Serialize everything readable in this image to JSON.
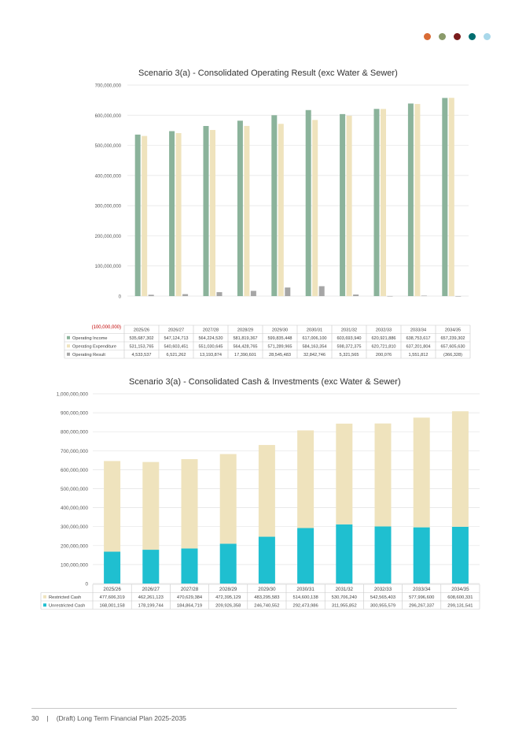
{
  "header": {
    "dot_colors": [
      "#d96b35",
      "#8a9a6a",
      "#7a1c1c",
      "#006d6f",
      "#a9d8ea"
    ]
  },
  "footer": {
    "page_number": "30",
    "separator": "|",
    "document_title": "(Draft) Long Term Financial Plan 2025-2035"
  },
  "chart1": {
    "title": "Scenario 3(a) - Consolidated Operating Result (exc Water & Sewer)",
    "negative_label": "(100,000,000)",
    "chart_data": {
      "type": "bar",
      "title": "Scenario 3(a) - Consolidated Operating Result (exc Water & Sewer)",
      "categories": [
        "2025/26",
        "2026/27",
        "2027/28",
        "2028/29",
        "2029/30",
        "2030/31",
        "2031/32",
        "2032/33",
        "2033/34",
        "2034/35"
      ],
      "ylim": [
        -100000000,
        700000000
      ],
      "yticks": [
        "700,000,000",
        "600,000,000",
        "500,000,000",
        "400,000,000",
        "300,000,000",
        "200,000,000",
        "100,000,000",
        "0"
      ],
      "grid": true,
      "legend": "data-table",
      "series": [
        {
          "name": "Operating Income",
          "color": "#8bb39b",
          "values": [
            535687302,
            547124713,
            564224520,
            581819367,
            599835448,
            617006100,
            603693940,
            620921886,
            638753617,
            657239302
          ],
          "labels": [
            "535,687,302",
            "547,124,713",
            "564,224,520",
            "581,819,367",
            "599,835,448",
            "617,006,100",
            "603,693,940",
            "620,921,886",
            "638,753,617",
            "657,239,302"
          ]
        },
        {
          "name": "Operating Expenditure",
          "color": "#efe3bd",
          "values": [
            531153765,
            540603451,
            551030645,
            564428765,
            571289965,
            584163354,
            598372375,
            620721810,
            637201804,
            657605630
          ],
          "labels": [
            "531,153,765",
            "540,603,451",
            "551,030,645",
            "564,428,765",
            "571,289,965",
            "584,163,354",
            "598,372,375",
            "620,721,810",
            "637,201,804",
            "657,605,630"
          ]
        },
        {
          "name": "Operating Result",
          "color": "#a6a6a6",
          "values": [
            4533537,
            6521262,
            13193874,
            17390601,
            28545483,
            32842746,
            5321565,
            200076,
            1551812,
            -366328
          ],
          "labels": [
            "4,533,537",
            "6,521,262",
            "13,193,874",
            "17,390,601",
            "28,545,483",
            "32,842,746",
            "5,321,565",
            "200,076",
            "1,551,812",
            "(366,328)"
          ]
        }
      ]
    }
  },
  "chart2": {
    "title": "Scenario 3(a) - Consolidated Cash & Investments (exc Water & Sewer)",
    "chart_data": {
      "type": "bar",
      "stacked": true,
      "title": "Scenario 3(a) - Consolidated Cash & Investments (exc Water & Sewer)",
      "categories": [
        "2025/26",
        "2026/27",
        "2027/28",
        "2028/29",
        "2029/30",
        "2030/31",
        "2031/32",
        "2032/33",
        "2033/34",
        "2034/35"
      ],
      "ylim": [
        0,
        1000000000
      ],
      "yticks": [
        "1,000,000,000",
        "900,000,000",
        "800,000,000",
        "700,000,000",
        "600,000,000",
        "500,000,000",
        "400,000,000",
        "300,000,000",
        "200,000,000",
        "100,000,000",
        "0"
      ],
      "grid": true,
      "legend": "data-table",
      "series": [
        {
          "name": "Restricted Cash",
          "color": "#efe3bd",
          "values": [
            477606319,
            462261123,
            470629384,
            472395129,
            483295583,
            514600138,
            530706240,
            542565403,
            577996600,
            608600331
          ],
          "labels": [
            "477,606,319",
            "462,261,123",
            "470,629,384",
            "472,395,129",
            "483,295,583",
            "514,600,138",
            "530,706,240",
            "542,565,403",
            "577,996,600",
            "608,600,331"
          ]
        },
        {
          "name": "Unrestricted Cash",
          "color": "#1fbfd0",
          "values": [
            168001158,
            178199744,
            184864719,
            209926358,
            246740552,
            292473986,
            311955852,
            300955579,
            296267337,
            299131541
          ],
          "labels": [
            "168,001,158",
            "178,199,744",
            "184,864,719",
            "209,926,358",
            "246,740,552",
            "292,473,986",
            "311,955,852",
            "300,955,579",
            "296,267,337",
            "299,131,541"
          ]
        }
      ]
    }
  }
}
